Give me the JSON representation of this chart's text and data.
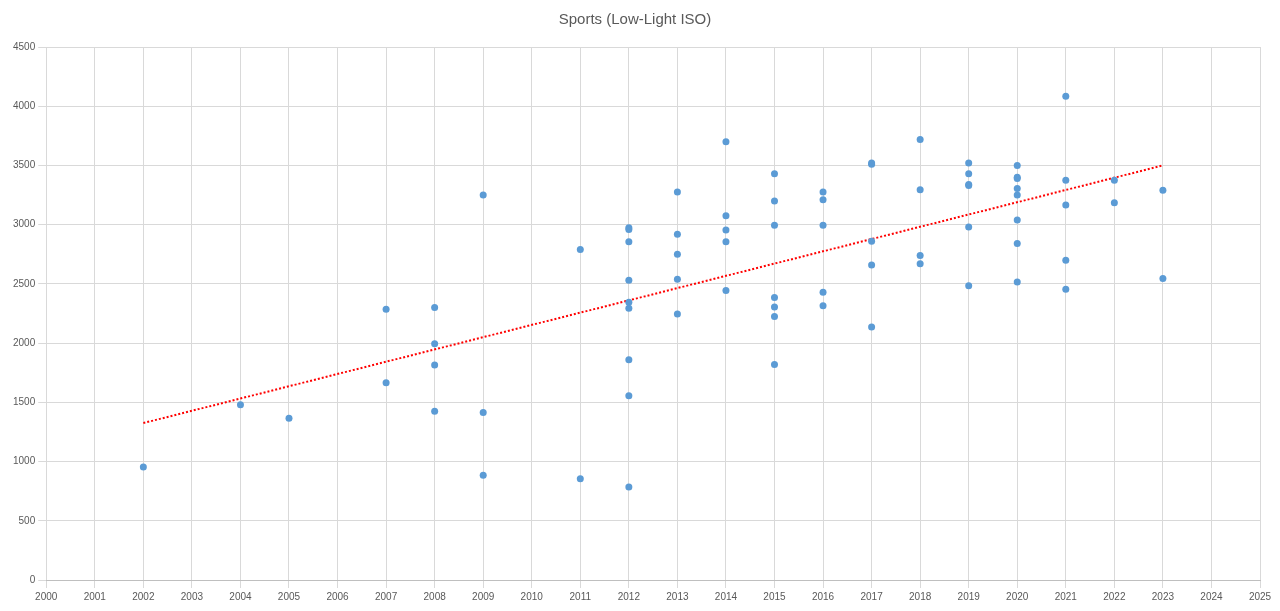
{
  "chart_data": {
    "type": "scatter",
    "title": "Sports (Low-Light ISO)",
    "xlim": [
      2000,
      2025
    ],
    "xticks": [
      2000,
      2001,
      2002,
      2003,
      2004,
      2005,
      2006,
      2007,
      2008,
      2009,
      2010,
      2011,
      2012,
      2013,
      2014,
      2015,
      2016,
      2017,
      2018,
      2019,
      2020,
      2021,
      2022,
      2023,
      2024,
      2025
    ],
    "ylim": [
      0,
      4500
    ],
    "yticks": [
      0,
      500,
      1000,
      1500,
      2000,
      2500,
      3000,
      3500,
      4000,
      4500
    ],
    "grid": true,
    "legend": false,
    "marker": "circle",
    "series": [
      {
        "type": "scatter",
        "color": "#5b9bd5",
        "x": [
          2002,
          2004,
          2005,
          2007,
          2007,
          2008,
          2008,
          2008,
          2008,
          2009,
          2009,
          2009,
          2011,
          2011,
          2012,
          2012,
          2012,
          2012,
          2012,
          2012,
          2012,
          2012,
          2012,
          2013,
          2013,
          2013,
          2013,
          2013,
          2014,
          2014,
          2014,
          2014,
          2014,
          2015,
          2015,
          2015,
          2015,
          2015,
          2015,
          2015,
          2016,
          2016,
          2016,
          2016,
          2016,
          2017,
          2017,
          2017,
          2017,
          2017,
          2018,
          2018,
          2018,
          2018,
          2019,
          2019,
          2019,
          2019,
          2019,
          2019,
          2020,
          2020,
          2020,
          2020,
          2020,
          2020,
          2020,
          2020,
          2021,
          2021,
          2021,
          2021,
          2021,
          2022,
          2022,
          2023,
          2023
        ],
        "values": [
          955,
          1480,
          1365,
          2285,
          1665,
          2300,
          1995,
          1815,
          1425,
          3250,
          1415,
          885,
          2790,
          855,
          2975,
          2960,
          2855,
          2530,
          2345,
          2295,
          1860,
          1555,
          785,
          3275,
          2920,
          2750,
          2540,
          2245,
          3700,
          3075,
          2955,
          2855,
          2445,
          3430,
          3200,
          2995,
          2385,
          2305,
          2225,
          1820,
          3275,
          3210,
          2995,
          2430,
          2315,
          3520,
          3510,
          2860,
          2660,
          2135,
          3720,
          3295,
          2740,
          2670,
          3520,
          3430,
          3340,
          3330,
          2980,
          2485,
          3500,
          3400,
          3390,
          3305,
          3250,
          3040,
          2840,
          2515,
          4085,
          3375,
          3165,
          2700,
          2455,
          3375,
          3185,
          3290,
          2545
        ]
      },
      {
        "type": "line",
        "color": "#ff0000",
        "line_style": "dotted",
        "marker": "none",
        "x": [
          2002,
          2023
        ],
        "values": [
          1325,
          3500
        ]
      }
    ]
  }
}
